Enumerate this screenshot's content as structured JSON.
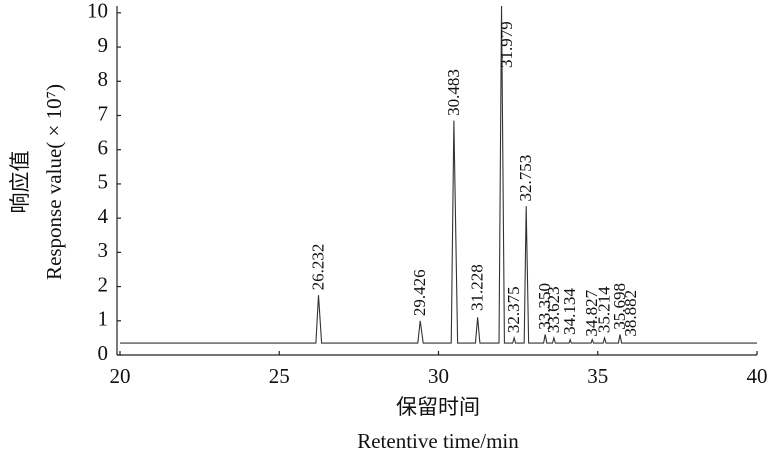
{
  "chart_data": {
    "type": "line",
    "xlabel": [
      "保留时间",
      "Retentive time/min"
    ],
    "ylabel": [
      "响应值",
      "Response value( × 10⁷)"
    ],
    "x": [
      20,
      26.15,
      26.232,
      26.33,
      29.35,
      29.426,
      29.52,
      30.4,
      30.483,
      30.6,
      31.16,
      31.228,
      31.3,
      31.9,
      31.979,
      32.07,
      32.33,
      32.375,
      32.42,
      32.69,
      32.753,
      32.83,
      33.3,
      33.35,
      33.4,
      33.58,
      33.623,
      33.67,
      34.1,
      34.134,
      34.17,
      34.79,
      34.827,
      34.87,
      35.17,
      35.214,
      35.26,
      35.65,
      35.698,
      35.75,
      40
    ],
    "series": [
      {
        "name": "signal",
        "color": "#333333",
        "values": [
          0.35,
          0.35,
          1.75,
          0.35,
          0.35,
          1.0,
          0.35,
          0.35,
          6.85,
          0.35,
          0.35,
          1.1,
          0.35,
          0.35,
          10.2,
          0.35,
          0.35,
          0.5,
          0.35,
          0.35,
          4.35,
          0.35,
          0.35,
          0.6,
          0.35,
          0.35,
          0.5,
          0.35,
          0.35,
          0.45,
          0.35,
          0.35,
          0.45,
          0.35,
          0.35,
          0.5,
          0.35,
          0.35,
          0.6,
          0.35,
          0.35
        ]
      }
    ],
    "annotations": [
      {
        "text": "26.232",
        "x": 26.232,
        "y": 1.8
      },
      {
        "text": "29.426",
        "x": 29.426,
        "y": 1.05
      },
      {
        "text": "30.483",
        "x": 30.483,
        "y": 6.9
      },
      {
        "text": "31.228",
        "x": 31.228,
        "y": 1.2
      },
      {
        "text": "31.979",
        "x": 32.15,
        "y": 8.3
      },
      {
        "text": "32.375",
        "x": 32.375,
        "y": 0.55
      },
      {
        "text": "32.753",
        "x": 32.753,
        "y": 4.4
      },
      {
        "text": "33.350",
        "x": 33.35,
        "y": 0.65
      },
      {
        "text": "33.623",
        "x": 33.623,
        "y": 0.55
      },
      {
        "text": "34.134",
        "x": 34.134,
        "y": 0.5
      },
      {
        "text": "34.827",
        "x": 34.827,
        "y": 0.45
      },
      {
        "text": "35.214",
        "x": 35.214,
        "y": 0.55
      },
      {
        "text": "35.698",
        "x": 35.698,
        "y": 0.65
      },
      {
        "text": "38.882",
        "x": 36.05,
        "y": 0.45
      }
    ],
    "xlim": [
      20,
      40
    ],
    "xticks": [
      20,
      25,
      30,
      35,
      40
    ],
    "ylim": [
      0,
      10.2
    ],
    "yticks": [
      0,
      1,
      2,
      3,
      4,
      5,
      6,
      7,
      8,
      9,
      10
    ]
  }
}
